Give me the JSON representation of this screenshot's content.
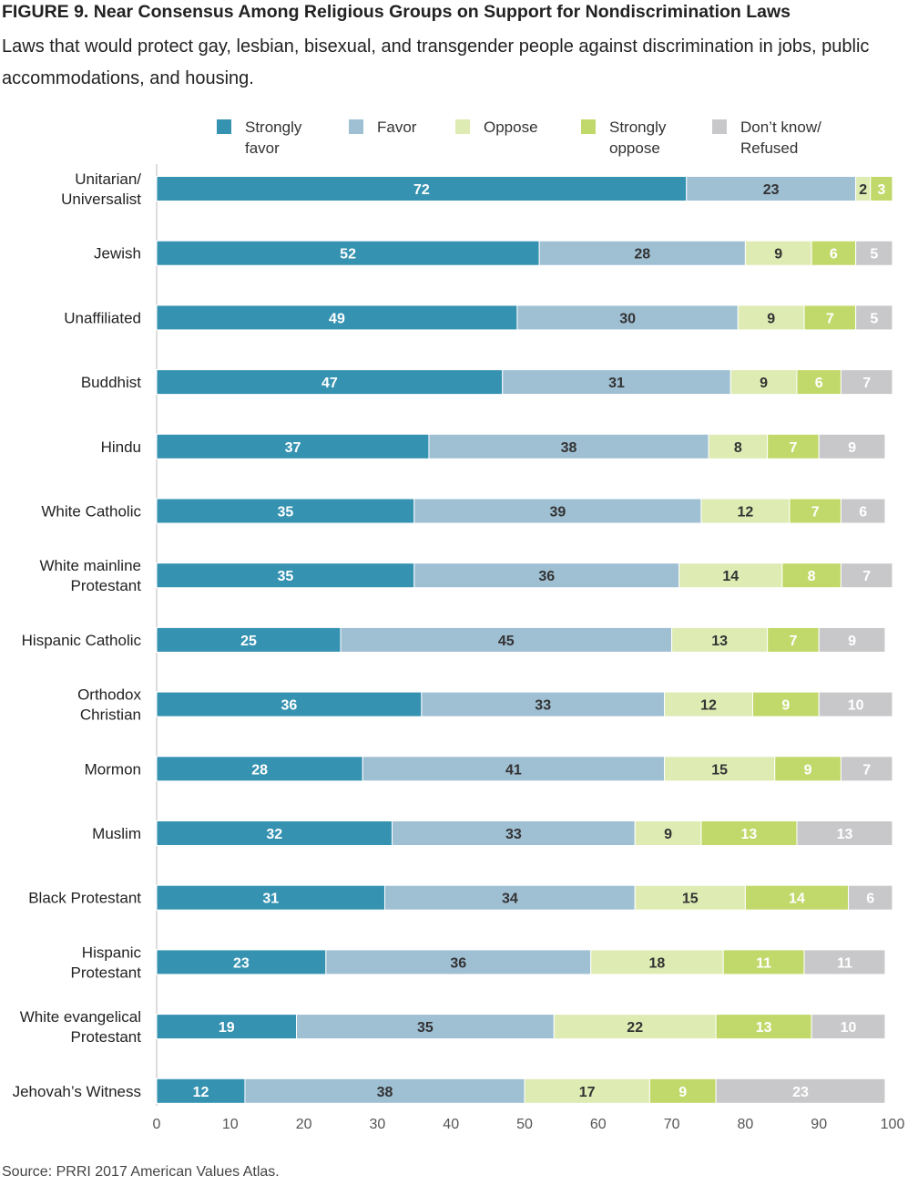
{
  "title": "FIGURE 9.  Near Consensus Among Religious Groups on Support for Nondiscrimination Laws",
  "subtitle": "Laws that would protect gay, lesbian, bisexual, and transgender people against discrimination in jobs, public accommodations, and housing.",
  "source": "Source: PRRI 2017 American Values Atlas.",
  "chart_data": {
    "type": "bar",
    "orientation": "horizontal",
    "stacked": true,
    "xlim": [
      0,
      100
    ],
    "xticks": [
      0,
      10,
      20,
      30,
      40,
      50,
      60,
      70,
      80,
      90,
      100
    ],
    "grid": false,
    "legend_position": "top",
    "categories": [
      [
        "Unitarian/",
        "Universalist"
      ],
      [
        "Jewish"
      ],
      [
        "Unaffiliated"
      ],
      [
        "Buddhist"
      ],
      [
        "Hindu"
      ],
      [
        "White Catholic"
      ],
      [
        "White mainline",
        "Protestant"
      ],
      [
        "Hispanic Catholic"
      ],
      [
        "Orthodox",
        "Christian"
      ],
      [
        "Mormon"
      ],
      [
        "Muslim"
      ],
      [
        "Black Protestant"
      ],
      [
        "Hispanic",
        "Protestant"
      ],
      [
        "White evangelical",
        "Protestant"
      ],
      [
        "Jehovah’s Witness"
      ]
    ],
    "series": [
      {
        "name": [
          "Strongly",
          "favor"
        ],
        "color": "#3592b1",
        "label_color": "#ffffff",
        "values": [
          72,
          52,
          49,
          47,
          37,
          35,
          35,
          25,
          36,
          28,
          32,
          31,
          23,
          19,
          12
        ]
      },
      {
        "name": [
          "Favor"
        ],
        "color": "#9fbfd3",
        "label_color": "#333333",
        "values": [
          23,
          28,
          30,
          31,
          38,
          39,
          36,
          45,
          33,
          41,
          33,
          34,
          36,
          35,
          38
        ]
      },
      {
        "name": [
          "Oppose"
        ],
        "color": "#deebb3",
        "label_color": "#333333",
        "values": [
          2,
          9,
          9,
          9,
          8,
          12,
          14,
          13,
          12,
          15,
          9,
          15,
          18,
          22,
          17
        ]
      },
      {
        "name": [
          "Strongly",
          "oppose"
        ],
        "color": "#c1d96a",
        "label_color": "#ffffff",
        "values": [
          3,
          6,
          7,
          6,
          7,
          7,
          8,
          7,
          9,
          9,
          13,
          14,
          11,
          13,
          9
        ]
      },
      {
        "name": [
          "Don’t know/",
          "Refused"
        ],
        "color": "#c8c8ca",
        "label_color": "#ffffff",
        "values": [
          null,
          5,
          5,
          7,
          9,
          6,
          7,
          9,
          10,
          7,
          13,
          6,
          11,
          10,
          23
        ]
      }
    ]
  }
}
